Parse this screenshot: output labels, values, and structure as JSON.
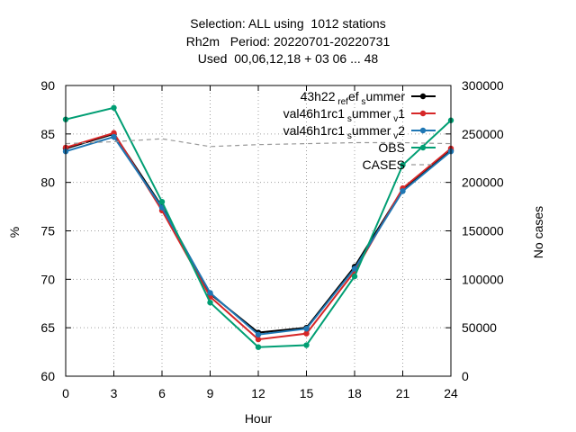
{
  "chart_data": {
    "type": "line",
    "title_lines": [
      "Selection: ALL using  1012 stations",
      "Rh2m   Period: 20220701-20220731",
      "Used  00,06,12,18 + 03 06 ... 48"
    ],
    "xlabel": "Hour",
    "ylabel": "%",
    "y2label": "No cases",
    "x": [
      0,
      3,
      6,
      9,
      12,
      15,
      18,
      21,
      24
    ],
    "xticks": [
      "0",
      "3",
      "6",
      "9",
      "12",
      "15",
      "18",
      "21",
      "24"
    ],
    "xlim": [
      0,
      24
    ],
    "ylim": [
      60,
      90
    ],
    "yticks": [
      "60",
      "65",
      "70",
      "75",
      "80",
      "85",
      "90"
    ],
    "y2lim": [
      0,
      300000
    ],
    "y2ticks": [
      "0",
      "50000",
      "100000",
      "150000",
      "200000",
      "250000",
      "300000"
    ],
    "grid": true,
    "legend_position": "top-right",
    "series": [
      {
        "name_main": "43h22",
        "name_sub": "ref",
        "name_sep": "s",
        "name_tail": "ummer",
        "name_sep2": "",
        "name_tail2": "",
        "color": "#000000",
        "axis": "y",
        "values": [
          83.5,
          85.0,
          77.5,
          68.5,
          64.5,
          65.0,
          71.3,
          79.3,
          83.3
        ]
      },
      {
        "name_main": "val46h1rc1",
        "name_sub": "",
        "name_sep": "s",
        "name_tail": "ummer",
        "name_sep2": "v",
        "name_tail2": "1",
        "color": "#d62728",
        "axis": "y",
        "values": [
          83.6,
          85.1,
          77.1,
          68.2,
          63.8,
          64.4,
          70.8,
          79.4,
          83.5
        ]
      },
      {
        "name_main": "val46h1rc1",
        "name_sub": "",
        "name_sep": "s",
        "name_tail": "ummer",
        "name_sep2": "v",
        "name_tail2": "2",
        "color": "#1f77b4",
        "axis": "y",
        "values": [
          83.2,
          84.7,
          77.4,
          68.6,
          64.3,
          64.9,
          71.1,
          79.1,
          83.2
        ]
      },
      {
        "name_main": "OBS",
        "name_sub": "",
        "name_sep": "",
        "name_tail": "",
        "name_sep2": "",
        "name_tail2": "",
        "color": "#009e73",
        "axis": "y",
        "values": [
          86.5,
          87.7,
          78.0,
          67.6,
          63.0,
          63.2,
          70.3,
          81.8,
          86.4
        ]
      },
      {
        "name_main": "CASES",
        "name_sub": "",
        "name_sep": "",
        "name_tail": "",
        "name_sep2": "",
        "name_tail2": "",
        "color": "#999999",
        "axis": "y2",
        "dashed": true,
        "values": [
          240000,
          242000,
          245000,
          237000,
          239000,
          240000,
          241000,
          241000,
          240000
        ]
      }
    ]
  }
}
